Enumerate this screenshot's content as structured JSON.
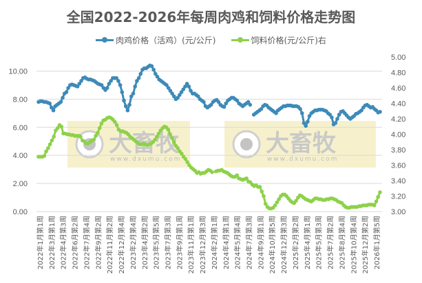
{
  "title": "全国2022-2026年每周肉鸡和饲料价格走势图",
  "legend": [
    {
      "label": "肉鸡价格（活鸡）(元/公斤)",
      "color": "#3E8AB8"
    },
    {
      "label": "饲料价格(元/公斤)右",
      "color": "#8DD14A"
    }
  ],
  "watermark": {
    "brand": "大畜牧",
    "url": "www.dxumu.com"
  },
  "chart_data": {
    "type": "line",
    "title": "全国2022-2026年每周肉鸡和饲料价格走势图",
    "xlabel": "",
    "ylabel_left": "",
    "ylabel_right": "",
    "left_axis": {
      "ylim": [
        0,
        11
      ],
      "ticks": [
        "0.00",
        "2.00",
        "4.00",
        "6.00",
        "8.00",
        "10.00"
      ]
    },
    "right_axis": {
      "ylim": [
        3.0,
        5.0
      ],
      "ticks": [
        "3.00",
        "3.20",
        "3.40",
        "3.60",
        "3.80",
        "4.00",
        "4.20",
        "4.40",
        "4.60",
        "4.80",
        "5.00"
      ]
    },
    "grid": true,
    "legend_position": "top",
    "x_tick_labels": [
      "2022年1月第1周",
      "2022年3月第1周",
      "2022年4月第3周",
      "2022年6月第2周",
      "2022年7月第4周",
      "2022年9月第2周",
      "2022年11月第2周",
      "2022年12月第4周",
      "2023年2月第4周",
      "2023年4月第2周",
      "2023年5月第5周",
      "2023年7月第3周",
      "2023年9月第1周",
      "2023年11月第1周",
      "2023年12月第3周",
      "2024年2月第1周",
      "2024年4月第1周",
      "2024年5月第4周",
      "2024年7月第3周",
      "2024年9月第1周",
      "2024年10月第5周",
      "2024年12月第3周",
      "2025年2月第2周",
      "2025年4月第1周",
      "2025年5月第3周",
      "2025年7月第2周",
      "2025年8月第4周",
      "2025年10月第4周",
      "2025年12月第2周",
      "2026年1月第5周"
    ],
    "series": [
      {
        "name": "肉鸡价格（活鸡）(元/公斤)",
        "axis": "left",
        "color": "#3E8AB8",
        "values": [
          7.8,
          7.85,
          7.85,
          7.8,
          7.8,
          7.75,
          7.7,
          7.4,
          7.2,
          7.5,
          7.6,
          7.7,
          7.8,
          8.1,
          8.4,
          8.5,
          8.8,
          9.0,
          9.05,
          9.0,
          8.95,
          8.9,
          9.1,
          9.3,
          9.5,
          9.55,
          9.45,
          9.4,
          9.4,
          9.35,
          9.3,
          9.2,
          9.1,
          9.05,
          9.0,
          8.8,
          8.65,
          8.8,
          9.1,
          9.3,
          9.5,
          9.5,
          9.5,
          9.3,
          9.0,
          8.5,
          7.9,
          7.5,
          7.2,
          7.6,
          8.2,
          8.4,
          8.9,
          9.3,
          9.5,
          9.8,
          10.1,
          10.2,
          10.2,
          10.3,
          10.4,
          10.35,
          10.1,
          9.8,
          9.6,
          9.4,
          9.3,
          9.2,
          9.1,
          9.0,
          8.8,
          8.6,
          8.4,
          8.2,
          8.0,
          8.1,
          8.3,
          8.5,
          8.7,
          8.9,
          9.1,
          8.9,
          8.6,
          8.4,
          8.4,
          8.3,
          8.2,
          8.0,
          7.9,
          7.8,
          7.5,
          7.4,
          7.5,
          7.6,
          7.8,
          7.9,
          7.95,
          7.8,
          7.6,
          7.5,
          7.45,
          7.7,
          7.9,
          8.0,
          8.1,
          8.1,
          8.0,
          7.9,
          7.7,
          7.6,
          7.5,
          7.6,
          7.7,
          7.8,
          7.6,
          null,
          6.9,
          7.0,
          7.1,
          7.2,
          7.3,
          7.5,
          7.6,
          7.55,
          7.4,
          7.3,
          7.2,
          7.1,
          7.0,
          7.2,
          7.3,
          7.4,
          7.5,
          7.5,
          7.55,
          7.55,
          7.55,
          7.5,
          7.5,
          7.5,
          7.45,
          7.3,
          7.0,
          6.3,
          6.1,
          6.4,
          6.8,
          7.0,
          7.1,
          7.2,
          7.2,
          7.25,
          7.25,
          7.25,
          7.2,
          7.15,
          7.0,
          6.9,
          6.7,
          6.2,
          6.3,
          6.6,
          6.9,
          7.1,
          7.15,
          7.0,
          6.85,
          6.7,
          6.6,
          6.7,
          6.8,
          6.95,
          7.0,
          7.1,
          7.2,
          7.4,
          7.55,
          7.6,
          7.5,
          7.4,
          7.45,
          7.3,
          7.2,
          7.05,
          7.1
        ]
      },
      {
        "name": "饲料价格(元/公斤)右",
        "axis": "right",
        "color": "#8DD14A",
        "values": [
          3.71,
          3.71,
          3.71,
          3.72,
          3.78,
          3.82,
          3.87,
          3.92,
          3.97,
          4.05,
          4.08,
          4.12,
          4.1,
          4.01,
          4.01,
          4.0,
          4.0,
          3.99,
          3.99,
          3.98,
          3.98,
          3.98,
          3.97,
          3.92,
          3.91,
          3.88,
          3.88,
          3.9,
          3.92,
          3.93,
          3.98,
          4.02,
          4.08,
          4.14,
          4.18,
          4.19,
          4.21,
          4.22,
          4.21,
          4.19,
          4.16,
          4.12,
          4.06,
          4.04,
          4.04,
          4.03,
          4.02,
          4.0,
          3.97,
          3.95,
          3.93,
          3.91,
          3.89,
          3.87,
          3.87,
          3.88,
          3.87,
          3.86,
          3.87,
          3.88,
          3.9,
          3.93,
          3.97,
          4.01,
          4.05,
          4.08,
          4.1,
          4.09,
          4.06,
          4.0,
          3.95,
          3.9,
          3.85,
          3.82,
          3.78,
          3.75,
          3.71,
          3.68,
          3.64,
          3.6,
          3.57,
          3.55,
          3.53,
          3.5,
          3.51,
          3.49,
          3.5,
          3.5,
          3.52,
          3.54,
          3.53,
          3.51,
          null,
          3.52,
          3.53,
          3.53,
          3.54,
          3.52,
          3.51,
          3.5,
          3.48,
          3.46,
          3.45,
          3.45,
          3.47,
          3.43,
          3.42,
          3.41,
          3.42,
          3.43,
          3.39,
          3.38,
          3.35,
          3.33,
          3.34,
          3.32,
          3.32,
          3.26,
          3.2,
          3.1,
          3.06,
          3.04,
          3.04,
          3.05,
          3.08,
          3.12,
          3.16,
          3.2,
          3.22,
          3.22,
          3.2,
          3.17,
          3.14,
          3.12,
          3.11,
          3.14,
          3.18,
          3.21,
          3.2,
          3.18,
          3.16,
          3.15,
          3.14,
          3.13,
          3.15,
          3.17,
          3.17,
          3.16,
          3.16,
          3.15,
          3.15,
          3.16,
          3.16,
          3.17,
          3.17,
          3.16,
          3.15,
          3.13,
          3.12,
          3.11,
          3.08,
          3.06,
          3.05,
          3.05,
          3.06,
          3.06,
          3.06,
          3.06,
          3.07,
          3.07,
          3.08,
          3.08,
          3.08,
          3.09,
          3.09,
          3.09,
          3.08,
          3.13,
          3.19,
          3.25
        ]
      }
    ]
  }
}
